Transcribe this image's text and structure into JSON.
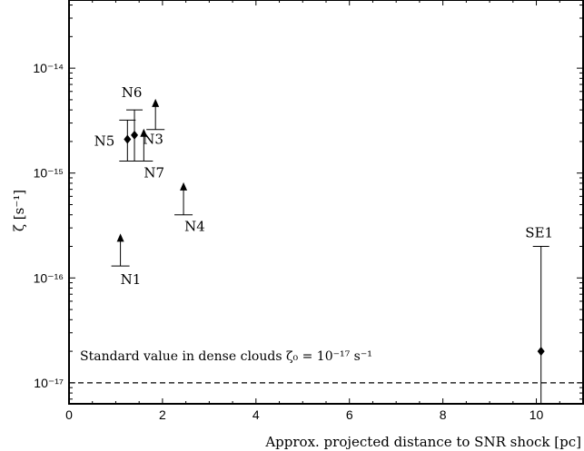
{
  "chart_data": {
    "type": "scatter",
    "xlabel": "Approx. projected distance to SNR shock [pc]",
    "ylabel": "ζ [s⁻¹]",
    "xlim": [
      0,
      11
    ],
    "ylim_log10": [
      -17.2,
      -13.35
    ],
    "y_scale": "log",
    "grid": false,
    "x_ticks": [
      0,
      2,
      4,
      6,
      8,
      10
    ],
    "y_ticks": [
      {
        "exp": -17,
        "label": "10⁻¹⁷"
      },
      {
        "exp": -16,
        "label": "10⁻¹⁶"
      },
      {
        "exp": -15,
        "label": "10⁻¹⁵"
      },
      {
        "exp": -14,
        "label": "10⁻¹⁴"
      }
    ],
    "reference_line": {
      "value": 1e-17,
      "style": "dashed",
      "label": "Standard value in dense clouds ζ₀ = 10⁻¹⁷ s⁻¹"
    },
    "lower_limits": [
      {
        "name": "N1",
        "x": 1.1,
        "y": 1.3e-16,
        "arrow_to": 2.6e-16
      },
      {
        "name": "N3",
        "x": 1.85,
        "y": 2.6e-15,
        "arrow_to": 5e-15
      },
      {
        "name": "N4",
        "x": 2.45,
        "y": 4e-16,
        "arrow_to": 8e-16
      },
      {
        "name": "N7",
        "x": 1.6,
        "y": 1.3e-15,
        "arrow_to": 2.6e-15
      }
    ],
    "error_points": [
      {
        "name": "N5",
        "x": 1.25,
        "y": 2.1e-15,
        "low": 1.3e-15,
        "high": 3.2e-15
      },
      {
        "name": "N6",
        "x": 1.4,
        "y": 2.3e-15,
        "low": 1.3e-15,
        "high": 4e-15
      },
      {
        "name": "SE1",
        "x": 10.1,
        "y": 2e-17,
        "low": 1e-18,
        "high": 2e-16
      }
    ]
  }
}
